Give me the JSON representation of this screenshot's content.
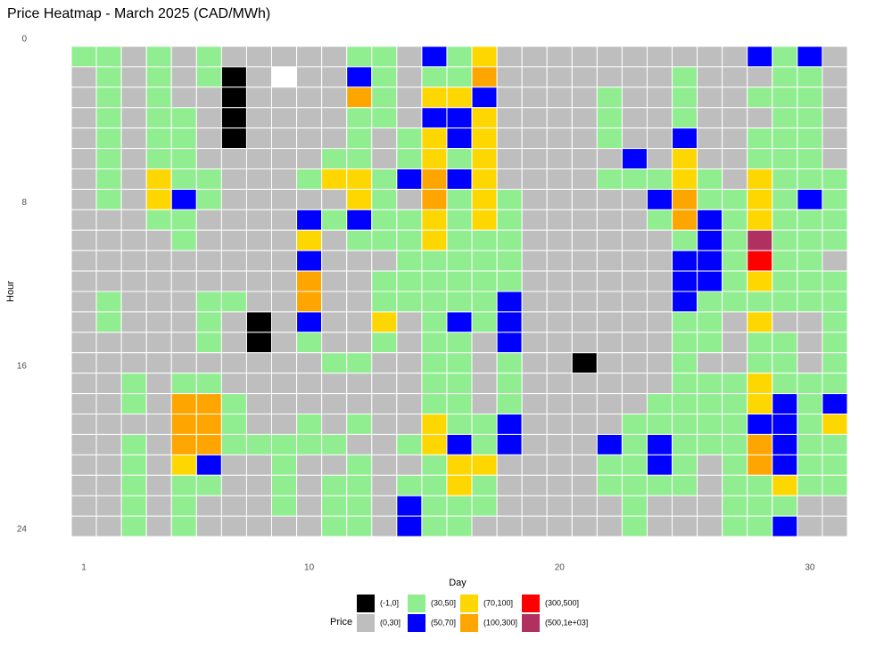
{
  "chart_data": {
    "type": "heatmap",
    "title": "Price Heatmap - March 2025 (CAD/MWh)",
    "x_label": "Day",
    "y_label": "Hour",
    "legend_title": "Price",
    "classes": [
      "(-1,0]",
      "(0,30]",
      "(30,50]",
      "(50,70]",
      "(70,100]",
      "(100,300]",
      "(300,500]",
      "(500,1e+03]"
    ],
    "colors": [
      "#000000",
      "#bebebe",
      "#90ee90",
      "#0000ff",
      "#ffd700",
      "#ffa500",
      "#ff0000",
      "#b03060"
    ],
    "missing_color": "#ffffff",
    "x": [
      1,
      2,
      3,
      4,
      5,
      6,
      7,
      8,
      9,
      10,
      11,
      12,
      13,
      14,
      15,
      16,
      17,
      18,
      19,
      20,
      21,
      22,
      23,
      24,
      25,
      26,
      27,
      28,
      29,
      30,
      31
    ],
    "y": [
      0,
      1,
      2,
      3,
      4,
      5,
      6,
      7,
      8,
      9,
      10,
      11,
      12,
      13,
      14,
      15,
      16,
      17,
      18,
      19,
      20,
      21,
      22,
      23
    ],
    "xlim": [
      0.5,
      31.5
    ],
    "xticks": [
      1,
      10,
      20,
      30
    ],
    "ylim": [
      0,
      24
    ],
    "yticks": [
      0,
      8,
      16,
      24
    ],
    "z": [
      [
        2,
        2,
        1,
        2,
        1,
        2,
        1,
        1,
        1,
        1,
        1,
        2,
        2,
        1,
        3,
        2,
        4,
        1,
        1,
        1,
        1,
        1,
        1,
        1,
        1,
        1,
        1,
        3,
        2,
        3,
        1
      ],
      [
        1,
        2,
        1,
        2,
        1,
        2,
        0,
        1,
        null,
        1,
        1,
        3,
        2,
        1,
        2,
        2,
        5,
        1,
        1,
        1,
        1,
        1,
        1,
        1,
        2,
        1,
        1,
        1,
        2,
        2,
        1
      ],
      [
        1,
        2,
        1,
        2,
        1,
        1,
        0,
        1,
        1,
        1,
        1,
        5,
        2,
        1,
        4,
        4,
        3,
        1,
        1,
        1,
        1,
        2,
        1,
        1,
        2,
        1,
        1,
        2,
        2,
        2,
        1
      ],
      [
        1,
        2,
        1,
        2,
        2,
        1,
        0,
        1,
        1,
        1,
        1,
        2,
        2,
        1,
        3,
        3,
        4,
        1,
        1,
        1,
        1,
        2,
        1,
        1,
        2,
        1,
        1,
        1,
        2,
        2,
        1
      ],
      [
        1,
        2,
        1,
        2,
        2,
        1,
        0,
        1,
        1,
        1,
        1,
        2,
        1,
        2,
        4,
        3,
        4,
        1,
        1,
        1,
        1,
        2,
        1,
        1,
        3,
        1,
        1,
        2,
        2,
        2,
        1
      ],
      [
        1,
        2,
        1,
        2,
        2,
        1,
        1,
        1,
        1,
        1,
        2,
        2,
        1,
        2,
        4,
        2,
        4,
        1,
        1,
        1,
        1,
        1,
        3,
        1,
        4,
        1,
        1,
        2,
        2,
        2,
        1
      ],
      [
        1,
        2,
        1,
        4,
        2,
        2,
        1,
        1,
        1,
        2,
        4,
        4,
        2,
        3,
        5,
        3,
        4,
        1,
        1,
        1,
        1,
        2,
        2,
        2,
        4,
        2,
        1,
        4,
        2,
        2,
        2
      ],
      [
        1,
        2,
        1,
        4,
        3,
        2,
        1,
        1,
        1,
        1,
        1,
        4,
        2,
        1,
        5,
        2,
        4,
        2,
        1,
        1,
        1,
        1,
        1,
        3,
        5,
        2,
        2,
        4,
        2,
        3,
        2
      ],
      [
        1,
        1,
        1,
        2,
        2,
        1,
        1,
        1,
        1,
        3,
        2,
        3,
        2,
        2,
        4,
        2,
        4,
        2,
        1,
        1,
        1,
        1,
        1,
        2,
        5,
        3,
        2,
        4,
        2,
        2,
        2
      ],
      [
        1,
        1,
        1,
        1,
        2,
        1,
        1,
        1,
        1,
        4,
        1,
        2,
        2,
        2,
        4,
        2,
        2,
        2,
        1,
        1,
        1,
        1,
        1,
        1,
        2,
        3,
        2,
        7,
        2,
        2,
        2
      ],
      [
        1,
        1,
        1,
        1,
        1,
        1,
        1,
        1,
        1,
        3,
        1,
        1,
        1,
        2,
        2,
        2,
        2,
        2,
        1,
        1,
        1,
        1,
        1,
        1,
        3,
        3,
        2,
        6,
        2,
        2,
        1
      ],
      [
        1,
        1,
        1,
        1,
        1,
        1,
        1,
        1,
        1,
        5,
        1,
        1,
        2,
        2,
        2,
        2,
        2,
        2,
        1,
        1,
        1,
        1,
        1,
        1,
        3,
        3,
        2,
        4,
        2,
        2,
        2
      ],
      [
        1,
        2,
        1,
        1,
        1,
        2,
        2,
        1,
        1,
        5,
        1,
        1,
        2,
        2,
        2,
        2,
        2,
        3,
        1,
        1,
        1,
        1,
        1,
        1,
        3,
        2,
        2,
        2,
        2,
        2,
        2
      ],
      [
        1,
        2,
        1,
        1,
        1,
        2,
        1,
        0,
        1,
        3,
        1,
        1,
        4,
        1,
        2,
        3,
        2,
        3,
        1,
        1,
        1,
        1,
        1,
        1,
        2,
        2,
        1,
        4,
        1,
        1,
        2
      ],
      [
        1,
        1,
        1,
        1,
        1,
        2,
        1,
        0,
        1,
        2,
        1,
        1,
        2,
        1,
        2,
        2,
        1,
        3,
        1,
        1,
        1,
        1,
        1,
        1,
        2,
        2,
        1,
        2,
        2,
        1,
        2
      ],
      [
        1,
        1,
        1,
        1,
        1,
        1,
        1,
        1,
        1,
        1,
        2,
        2,
        1,
        1,
        2,
        2,
        1,
        2,
        1,
        1,
        0,
        1,
        1,
        1,
        2,
        1,
        1,
        2,
        2,
        1,
        2
      ],
      [
        1,
        1,
        2,
        1,
        2,
        2,
        1,
        1,
        1,
        1,
        1,
        1,
        1,
        1,
        2,
        2,
        1,
        2,
        1,
        1,
        1,
        1,
        1,
        1,
        2,
        2,
        2,
        4,
        2,
        2,
        2
      ],
      [
        1,
        1,
        2,
        1,
        5,
        5,
        2,
        1,
        1,
        1,
        1,
        1,
        1,
        1,
        2,
        2,
        1,
        2,
        1,
        1,
        1,
        1,
        1,
        2,
        2,
        2,
        2,
        4,
        3,
        2,
        3
      ],
      [
        1,
        1,
        1,
        1,
        5,
        5,
        2,
        1,
        1,
        2,
        1,
        2,
        1,
        1,
        4,
        2,
        2,
        3,
        1,
        1,
        1,
        1,
        2,
        2,
        2,
        2,
        2,
        3,
        3,
        2,
        4
      ],
      [
        1,
        1,
        2,
        1,
        5,
        5,
        2,
        2,
        2,
        2,
        2,
        1,
        1,
        2,
        4,
        3,
        2,
        3,
        1,
        1,
        1,
        3,
        2,
        3,
        2,
        2,
        2,
        5,
        3,
        2,
        2
      ],
      [
        1,
        1,
        2,
        1,
        4,
        3,
        1,
        1,
        2,
        1,
        1,
        2,
        1,
        1,
        2,
        4,
        4,
        1,
        1,
        1,
        1,
        2,
        2,
        3,
        2,
        1,
        2,
        5,
        3,
        2,
        2
      ],
      [
        1,
        1,
        2,
        1,
        2,
        2,
        1,
        1,
        2,
        1,
        2,
        2,
        1,
        2,
        2,
        4,
        2,
        1,
        1,
        1,
        1,
        2,
        2,
        2,
        2,
        1,
        2,
        2,
        4,
        2,
        2
      ],
      [
        1,
        1,
        2,
        1,
        2,
        1,
        1,
        1,
        2,
        1,
        2,
        2,
        1,
        3,
        2,
        2,
        2,
        1,
        1,
        1,
        1,
        1,
        2,
        1,
        1,
        1,
        2,
        2,
        2,
        1,
        1
      ],
      [
        1,
        1,
        2,
        1,
        2,
        1,
        1,
        1,
        1,
        1,
        2,
        2,
        1,
        3,
        2,
        2,
        1,
        1,
        1,
        1,
        1,
        1,
        2,
        1,
        1,
        1,
        2,
        2,
        3,
        1,
        1
      ]
    ]
  }
}
